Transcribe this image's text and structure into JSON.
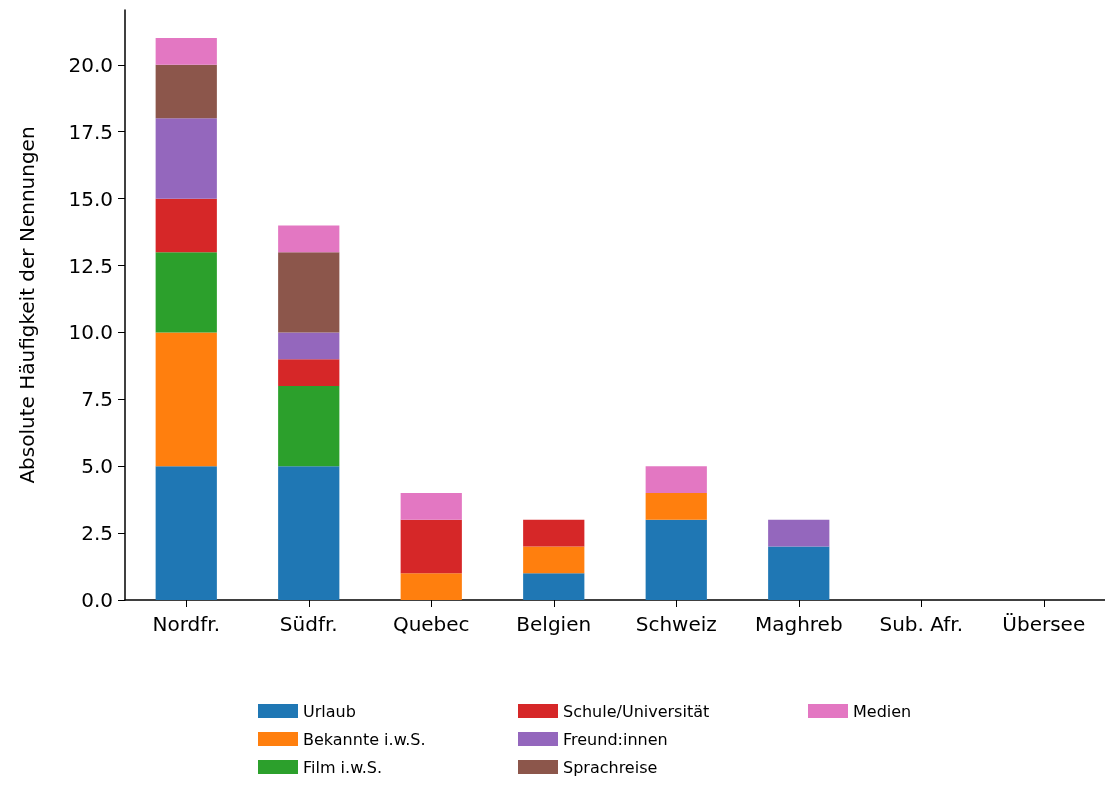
{
  "chart_data": {
    "type": "bar",
    "stacked": true,
    "ylabel": "Absolute Häufigkeit der Nennungen",
    "categories": [
      "Nordfr.",
      "Südfr.",
      "Quebec",
      "Belgien",
      "Schweiz",
      "Maghreb",
      "Sub. Afr.",
      "Übersee"
    ],
    "series": [
      {
        "name": "Urlaub",
        "color": "#1f77b4",
        "values": [
          5,
          5,
          0,
          1,
          3,
          2,
          0,
          0
        ]
      },
      {
        "name": "Bekannte i.w.S.",
        "color": "#ff7f0e",
        "values": [
          5,
          0,
          1,
          1,
          1,
          0,
          0,
          0
        ]
      },
      {
        "name": "Film i.w.S.",
        "color": "#2ca02c",
        "values": [
          3,
          3,
          0,
          0,
          0,
          0,
          0,
          0
        ]
      },
      {
        "name": "Schule/Universität",
        "color": "#d62728",
        "values": [
          2,
          1,
          2,
          1,
          0,
          0,
          0,
          0
        ]
      },
      {
        "name": "Freund:innen",
        "color": "#9467bd",
        "values": [
          3,
          1,
          0,
          0,
          0,
          1,
          0,
          0
        ]
      },
      {
        "name": "Sprachreise",
        "color": "#8c564b",
        "values": [
          2,
          3,
          0,
          0,
          0,
          0,
          0,
          0
        ]
      },
      {
        "name": "Medien",
        "color": "#e377c2",
        "values": [
          1,
          1,
          1,
          0,
          1,
          0,
          0,
          0
        ]
      }
    ],
    "ylim": [
      0,
      22.05
    ],
    "yticks": [
      {
        "value": 0,
        "label": "0.0"
      },
      {
        "value": 2.5,
        "label": "2.5"
      },
      {
        "value": 5,
        "label": "5.0"
      },
      {
        "value": 7.5,
        "label": "7.5"
      },
      {
        "value": 10,
        "label": "10.0"
      },
      {
        "value": 12.5,
        "label": "12.5"
      },
      {
        "value": 15,
        "label": "15.0"
      },
      {
        "value": 17.5,
        "label": "17.5"
      },
      {
        "value": 20,
        "label": "20.0"
      }
    ],
    "grid": false,
    "legend": "bottom"
  }
}
